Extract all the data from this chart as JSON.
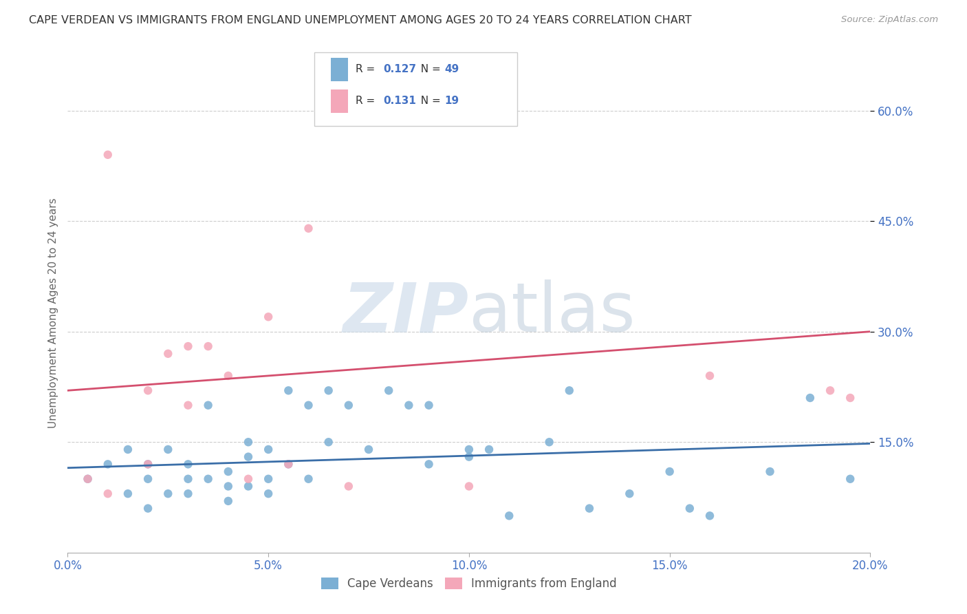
{
  "title": "CAPE VERDEAN VS IMMIGRANTS FROM ENGLAND UNEMPLOYMENT AMONG AGES 20 TO 24 YEARS CORRELATION CHART",
  "source": "Source: ZipAtlas.com",
  "ylabel": "Unemployment Among Ages 20 to 24 years",
  "xlim": [
    0.0,
    20.0
  ],
  "ylim": [
    0.0,
    65.0
  ],
  "yticks": [
    15.0,
    30.0,
    45.0,
    60.0
  ],
  "ytick_labels": [
    "15.0%",
    "30.0%",
    "45.0%",
    "60.0%"
  ],
  "xticks": [
    0.0,
    5.0,
    10.0,
    15.0,
    20.0
  ],
  "xtick_labels": [
    "0.0%",
    "5.0%",
    "10.0%",
    "15.0%",
    "20.0%"
  ],
  "legend_blue_R": "0.127",
  "legend_blue_N": "49",
  "legend_pink_R": "0.131",
  "legend_pink_N": "19",
  "legend_label_blue": "Cape Verdeans",
  "legend_label_pink": "Immigrants from England",
  "blue_color": "#7bafd4",
  "pink_color": "#f4a7b9",
  "trend_blue_color": "#3a6ea8",
  "trend_pink_color": "#d44f6e",
  "blue_scatter_x": [
    0.5,
    1.0,
    1.5,
    1.5,
    2.0,
    2.0,
    2.0,
    2.5,
    2.5,
    3.0,
    3.0,
    3.0,
    3.5,
    3.5,
    4.0,
    4.0,
    4.0,
    4.5,
    4.5,
    4.5,
    5.0,
    5.0,
    5.0,
    5.5,
    5.5,
    6.0,
    6.0,
    6.5,
    6.5,
    7.0,
    7.5,
    8.0,
    8.5,
    9.0,
    9.0,
    10.0,
    10.0,
    10.5,
    11.0,
    12.0,
    12.5,
    13.0,
    14.0,
    15.0,
    15.5,
    16.0,
    17.5,
    18.5,
    19.5
  ],
  "blue_scatter_y": [
    10.0,
    12.0,
    14.0,
    8.0,
    10.0,
    12.0,
    6.0,
    8.0,
    14.0,
    10.0,
    12.0,
    8.0,
    20.0,
    10.0,
    9.0,
    11.0,
    7.0,
    15.0,
    9.0,
    13.0,
    8.0,
    10.0,
    14.0,
    22.0,
    12.0,
    20.0,
    10.0,
    15.0,
    22.0,
    20.0,
    14.0,
    22.0,
    20.0,
    12.0,
    20.0,
    13.0,
    14.0,
    14.0,
    5.0,
    15.0,
    22.0,
    6.0,
    8.0,
    11.0,
    6.0,
    5.0,
    11.0,
    21.0,
    10.0
  ],
  "pink_scatter_x": [
    0.5,
    1.0,
    1.0,
    2.0,
    2.0,
    2.5,
    3.0,
    3.0,
    3.5,
    4.0,
    4.5,
    5.0,
    5.5,
    6.0,
    7.0,
    10.0,
    16.0,
    19.0,
    19.5
  ],
  "pink_scatter_y": [
    10.0,
    8.0,
    54.0,
    22.0,
    12.0,
    27.0,
    20.0,
    28.0,
    28.0,
    24.0,
    10.0,
    32.0,
    12.0,
    44.0,
    9.0,
    9.0,
    24.0,
    22.0,
    21.0
  ],
  "blue_trend_x": [
    0.0,
    20.0
  ],
  "blue_trend_y": [
    11.5,
    14.8
  ],
  "pink_trend_x": [
    0.0,
    20.0
  ],
  "pink_trend_y": [
    22.0,
    30.0
  ],
  "watermark_zip": "ZIP",
  "watermark_atlas": "atlas",
  "grid_color": "#cccccc",
  "background_color": "#ffffff",
  "title_color": "#333333",
  "axis_label_color": "#666666",
  "tick_color": "#4472c4",
  "legend_text_color": "#333333"
}
